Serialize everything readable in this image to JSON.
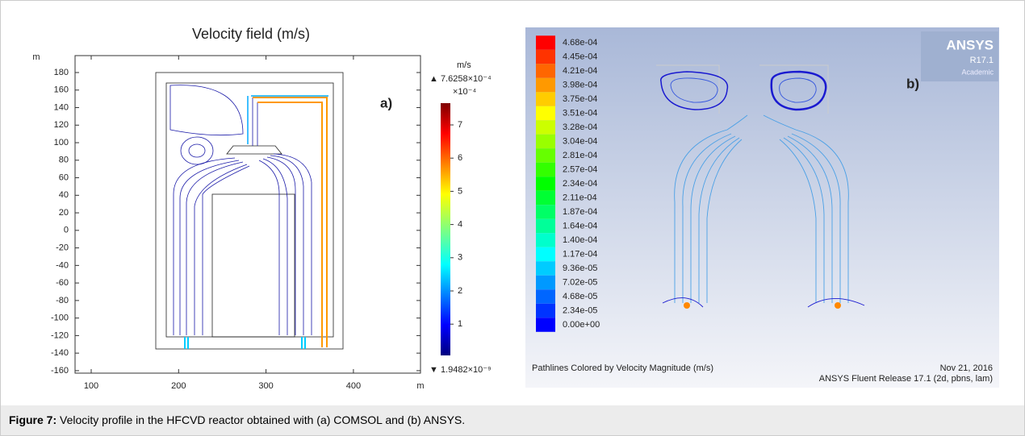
{
  "panel_a": {
    "title": "Velocity field (m/s)",
    "y_unit": "m",
    "x_unit": "m",
    "x_ticks": [
      "100",
      "200",
      "300",
      "400"
    ],
    "y_ticks": [
      "180",
      "160",
      "140",
      "120",
      "100",
      "80",
      "60",
      "40",
      "20",
      "0",
      "-20",
      "-40",
      "-60",
      "-80",
      "-100",
      "-120",
      "-140",
      "-160"
    ],
    "colorbar": {
      "unit": "m/s",
      "max_label": "▲ 7.6258×10⁻⁴",
      "multiplier": "×10⁻⁴",
      "ticks": [
        "7",
        "6",
        "5",
        "4",
        "3",
        "2",
        "1"
      ],
      "min_label": "▼ 1.9482×10⁻⁹"
    },
    "panel_label": "a)"
  },
  "panel_b": {
    "legend": [
      "4.68e-04",
      "4.45e-04",
      "4.21e-04",
      "3.98e-04",
      "3.75e-04",
      "3.51e-04",
      "3.28e-04",
      "3.04e-04",
      "2.81e-04",
      "2.57e-04",
      "2.34e-04",
      "2.11e-04",
      "1.87e-04",
      "1.64e-04",
      "1.40e-04",
      "1.17e-04",
      "9.36e-05",
      "7.02e-05",
      "4.68e-05",
      "2.34e-05",
      "0.00e+00"
    ],
    "logo": [
      "ANSYS",
      "R17.1",
      "Academic"
    ],
    "panel_label": "b)",
    "footer_left": "Pathlines Colored by Velocity Magnitude (m/s)",
    "footer_date": "Nov 21, 2016",
    "footer_release": "ANSYS Fluent Release 17.1 (2d, pbns, lam)"
  },
  "caption": {
    "label": "Figure 7:",
    "text": " Velocity profile in the HFCVD reactor obtained with (a) COMSOL and (b) ANSYS."
  }
}
